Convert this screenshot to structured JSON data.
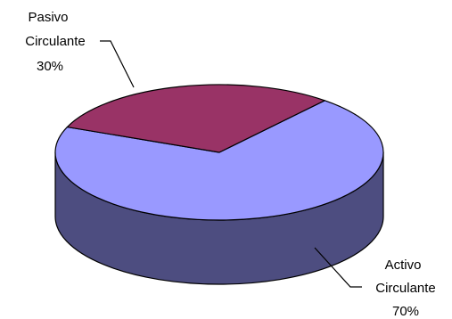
{
  "chart_data": {
    "type": "pie",
    "style": "3d",
    "title": "",
    "legend": "none",
    "slices": [
      {
        "label": [
          "Activo",
          "Circulante"
        ],
        "value": 70,
        "value_label": "70%",
        "top_color": "#9999FF",
        "side_color": "#4D4D80"
      },
      {
        "label": [
          "Pasivo",
          "Circulante"
        ],
        "value": 30,
        "value_label": "30%",
        "top_color": "#993366",
        "side_color": "#4D1A33"
      }
    ]
  }
}
